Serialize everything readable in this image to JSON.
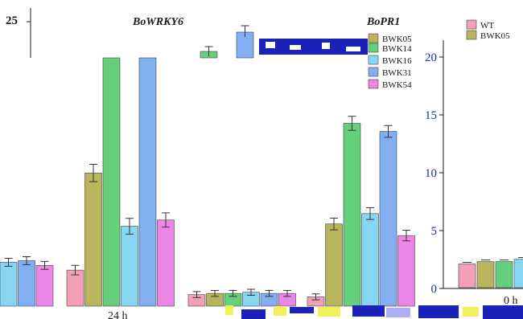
{
  "colors": {
    "WT": "#f2a0b8",
    "BWK05": "#b9b55c",
    "BWK14": "#64d07c",
    "BWK16": "#86d6f2",
    "BWK31": "#82aef2",
    "BWK54": "#ec86e6",
    "axis_text": "#1b2fb3",
    "glitch_blue": "#1b22b8",
    "glitch_yellow": "#f1f05b"
  },
  "chart_data": [
    {
      "type": "bar",
      "title": "BoWRKY6",
      "ylabel": "",
      "ylim": [
        0,
        25
      ],
      "y_tick_visible": [
        25
      ],
      "categories": [
        "0 h",
        "24 h"
      ],
      "category_labels_visible": [
        "24 h"
      ],
      "series": [
        {
          "name": "WT",
          "values": [
            null,
            2.3
          ],
          "errors": [
            null,
            0.15
          ]
        },
        {
          "name": "BWK05",
          "values": [
            null,
            8.5
          ],
          "errors": [
            null,
            0.4
          ]
        },
        {
          "name": "BWK14",
          "values": [
            null,
            16.5
          ],
          "errors": [
            null,
            0.3
          ]
        },
        {
          "name": "BWK16",
          "values": [
            2.8,
            5.1
          ],
          "errors": [
            0.1,
            0.35
          ]
        },
        {
          "name": "BWK31",
          "values": [
            2.9,
            16.5
          ],
          "errors": [
            0.1,
            0.5
          ]
        },
        {
          "name": "BWK54",
          "values": [
            2.6,
            5.5
          ],
          "errors": [
            0.1,
            0.3
          ]
        }
      ]
    },
    {
      "type": "bar",
      "title": "BoPR1",
      "ylabel": "",
      "ylim": [
        0,
        22
      ],
      "y_ticks": [
        0,
        5,
        10,
        15,
        20
      ],
      "categories": [
        "0 h",
        "24 h"
      ],
      "category_labels_visible": [
        "0 h"
      ],
      "series": [
        {
          "name": "WT",
          "values": [
            1.0,
            0.8
          ],
          "errors": [
            0.05,
            0.05
          ]
        },
        {
          "name": "BWK05",
          "values": [
            1.1,
            7.1
          ],
          "errors": [
            0.05,
            0.3
          ]
        },
        {
          "name": "BWK14",
          "values": [
            1.1,
            15.8
          ],
          "errors": [
            0.05,
            0.4
          ]
        },
        {
          "name": "BWK16",
          "values": [
            1.2,
            8.0
          ],
          "errors": [
            0.05,
            0.3
          ]
        },
        {
          "name": "BWK31",
          "values": [
            1.1,
            15.1
          ],
          "errors": [
            0.05,
            0.3
          ]
        },
        {
          "name": "BWK54",
          "values": [
            1.1,
            6.1
          ],
          "errors": [
            0.05,
            0.25
          ]
        }
      ]
    }
  ],
  "legend": {
    "placement": "top-right",
    "entries_visible": [
      "WT",
      "BWK05",
      "BWK05",
      "BWK14",
      "BWK16",
      "BWK31",
      "BWK54"
    ]
  }
}
